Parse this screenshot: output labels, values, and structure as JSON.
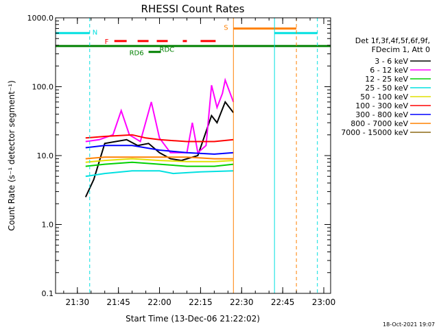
{
  "chart_data": {
    "type": "line",
    "title": "RHESSI Count Rates",
    "xlabel": "Start Time (13-Dec-06 21:22:02)",
    "ylabel": "Count Rate (s⁻¹ detector segment⁻¹)",
    "yscale": "log",
    "ylim": [
      0.1,
      1000
    ],
    "xlim": [
      "21:22:02",
      "23:02:30"
    ],
    "x_ticks": [
      "21:30",
      "21:45",
      "22:00",
      "22:15",
      "22:30",
      "22:45",
      "23:00"
    ],
    "y_ticks": [
      "0.1",
      "1.0",
      "10.0",
      "100.0",
      "1000.0"
    ],
    "legend_header": [
      "Det 1f,3f,4f,5f,6f,9f,",
      "FDecim 1, Att 0"
    ],
    "series": [
      {
        "name": "3 - 6 keV",
        "color": "#000000",
        "points": [
          [
            "21:33:00",
            2.5
          ],
          [
            "21:36:00",
            4.5
          ],
          [
            "21:40:00",
            15
          ],
          [
            "21:48:00",
            17
          ],
          [
            "21:52:00",
            14
          ],
          [
            "21:56:00",
            15
          ],
          [
            "22:00:00",
            11
          ],
          [
            "22:04:00",
            9
          ],
          [
            "22:08:00",
            8.5
          ],
          [
            "22:14:00",
            10
          ],
          [
            "22:19:00",
            38
          ],
          [
            "22:21:00",
            30
          ],
          [
            "22:24:00",
            60
          ],
          [
            "22:27:00",
            42
          ]
        ]
      },
      {
        "name": "6 - 12 keV",
        "color": "#ff00ff",
        "points": [
          [
            "21:33:00",
            16
          ],
          [
            "21:38:00",
            17
          ],
          [
            "21:43:00",
            20
          ],
          [
            "21:46:00",
            45
          ],
          [
            "21:49:00",
            20
          ],
          [
            "21:53:00",
            16
          ],
          [
            "21:57:00",
            60
          ],
          [
            "22:00:00",
            18
          ],
          [
            "22:04:00",
            11
          ],
          [
            "22:10:00",
            11
          ],
          [
            "22:12:00",
            30
          ],
          [
            "22:14:00",
            11
          ],
          [
            "22:17:00",
            14
          ],
          [
            "22:19:00",
            105
          ],
          [
            "22:21:00",
            50
          ],
          [
            "22:23:00",
            80
          ],
          [
            "22:24:00",
            125
          ],
          [
            "22:27:00",
            60
          ]
        ]
      },
      {
        "name": "12 - 25 keV",
        "color": "#00d000",
        "points": [
          [
            "21:33:00",
            7
          ],
          [
            "21:40:00",
            7.5
          ],
          [
            "21:50:00",
            8
          ],
          [
            "22:00:00",
            7.5
          ],
          [
            "22:10:00",
            7
          ],
          [
            "22:20:00",
            7
          ],
          [
            "22:27:00",
            7.5
          ]
        ]
      },
      {
        "name": "25 - 50 keV",
        "color": "#00e0e0",
        "points": [
          [
            "21:33:00",
            5
          ],
          [
            "21:40:00",
            5.5
          ],
          [
            "21:50:00",
            6
          ],
          [
            "22:00:00",
            6
          ],
          [
            "22:05:00",
            5.5
          ],
          [
            "22:15:00",
            5.8
          ],
          [
            "22:27:00",
            6
          ]
        ]
      },
      {
        "name": "50 - 100 keV",
        "color": "#e0e000",
        "points": [
          [
            "21:33:00",
            8
          ],
          [
            "21:40:00",
            8.5
          ],
          [
            "21:50:00",
            9
          ],
          [
            "22:00:00",
            8.5
          ],
          [
            "22:10:00",
            8.2
          ],
          [
            "22:20:00",
            8.2
          ],
          [
            "22:27:00",
            8.5
          ]
        ]
      },
      {
        "name": "100 - 300 keV",
        "color": "#ff0000",
        "points": [
          [
            "21:33:00",
            18
          ],
          [
            "21:40:00",
            19
          ],
          [
            "21:50:00",
            20
          ],
          [
            "21:55:00",
            18
          ],
          [
            "22:00:00",
            17
          ],
          [
            "22:10:00",
            16
          ],
          [
            "22:20:00",
            16
          ],
          [
            "22:27:00",
            17
          ]
        ]
      },
      {
        "name": "300 - 800 keV",
        "color": "#0000ff",
        "points": [
          [
            "21:33:00",
            13
          ],
          [
            "21:40:00",
            14
          ],
          [
            "21:50:00",
            14
          ],
          [
            "22:00:00",
            12
          ],
          [
            "22:10:00",
            11
          ],
          [
            "22:20:00",
            10.5
          ],
          [
            "22:27:00",
            11
          ]
        ]
      },
      {
        "name": "800 - 7000 keV",
        "color": "#ff8000",
        "points": [
          [
            "21:33:00",
            9
          ],
          [
            "21:40:00",
            9.5
          ],
          [
            "21:50:00",
            9.5
          ],
          [
            "22:00:00",
            9.5
          ],
          [
            "22:10:00",
            9.5
          ],
          [
            "22:20:00",
            9
          ],
          [
            "22:27:00",
            9
          ]
        ]
      },
      {
        "name": "7000 - 15000 keV",
        "color": "#8b6914",
        "points": []
      }
    ],
    "flag_bars": [
      {
        "label": "N",
        "color": "#00e0e0",
        "level": 600,
        "segments": [
          [
            "21:22:02",
            "21:34:30"
          ],
          [
            "22:42:00",
            "22:57:40"
          ]
        ]
      },
      {
        "label": "S",
        "color": "#ff8000",
        "level": 700,
        "segments": [
          [
            "22:27:00",
            "22:50:00"
          ]
        ]
      },
      {
        "label": "",
        "color": "#008000",
        "level": 390,
        "segments": [
          [
            "21:22:02",
            "23:02:30"
          ]
        ]
      },
      {
        "label": "F",
        "color": "#ff0000",
        "level": 460,
        "segments": [
          [
            "21:43:30",
            "21:48:00"
          ],
          [
            "21:52:00",
            "21:56:00"
          ],
          [
            "21:59:00",
            "22:03:00"
          ],
          [
            "22:08:30",
            "22:10:00"
          ],
          [
            "22:15:00",
            "22:20:30"
          ]
        ]
      },
      {
        "label": "RD6",
        "color": "#008000",
        "level": 320,
        "segments": [
          [
            "21:56:00",
            "22:00:30"
          ]
        ]
      },
      {
        "label": "RDC",
        "color": "#008000",
        "level": 360,
        "segments": []
      }
    ],
    "vertical_lines": [
      {
        "time": "21:22:02",
        "color": "#00e0e0",
        "style": "solid"
      },
      {
        "time": "21:34:30",
        "color": "#00e0e0",
        "style": "dashed"
      },
      {
        "time": "22:27:00",
        "color": "#ff8000",
        "style": "solid"
      },
      {
        "time": "22:42:00",
        "color": "#00e0e0",
        "style": "solid"
      },
      {
        "time": "22:50:00",
        "color": "#ff8000",
        "style": "dashed"
      },
      {
        "time": "22:57:40",
        "color": "#00e0e0",
        "style": "dashed"
      }
    ]
  },
  "footer": "18-Oct-2021 19:07"
}
